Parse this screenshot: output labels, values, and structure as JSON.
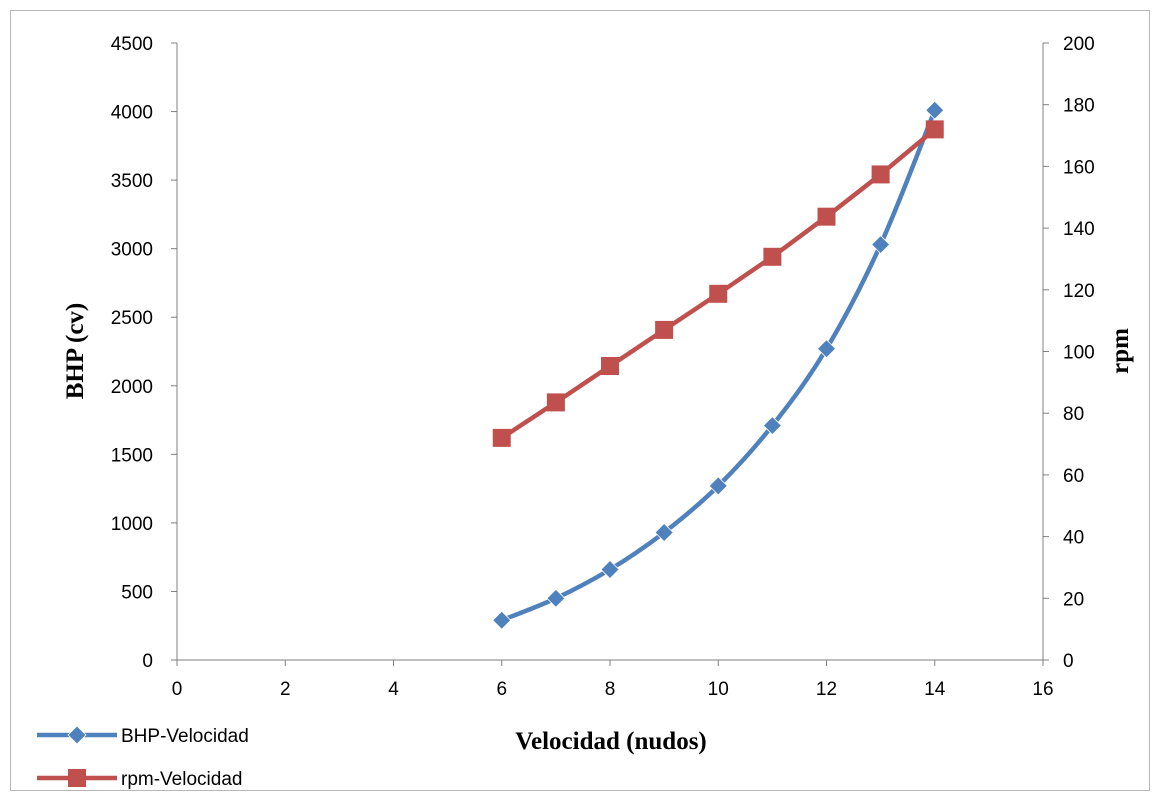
{
  "chart_data": {
    "type": "line",
    "title": "",
    "xlabel": "Velocidad (nudos)",
    "ylabel": "BHP (cv)",
    "y2label": "rpm",
    "xlim": [
      0,
      16
    ],
    "ylim": [
      0,
      4500
    ],
    "y2lim": [
      0,
      200
    ],
    "xticks": [
      "0",
      "2",
      "4",
      "6",
      "8",
      "10",
      "12",
      "14",
      "16"
    ],
    "yticks": [
      "0",
      "500",
      "1000",
      "1500",
      "2000",
      "2500",
      "3000",
      "3500",
      "4000",
      "4500"
    ],
    "y2ticks": [
      "0",
      "20",
      "40",
      "60",
      "80",
      "100",
      "120",
      "140",
      "160",
      "180",
      "200"
    ],
    "grid": false,
    "legend_position": "bottom-left",
    "series": [
      {
        "name": "BHP-Velocidad",
        "axis": "left",
        "marker": "diamond",
        "smooth": true,
        "color": "#4f81bd",
        "x": [
          6,
          7,
          8,
          9,
          10,
          11,
          12,
          13,
          14
        ],
        "y": [
          290,
          450,
          660,
          930,
          1270,
          1710,
          2270,
          3030,
          4010
        ]
      },
      {
        "name": "rpm-Velocidad",
        "axis": "right",
        "marker": "square",
        "smooth": false,
        "color": "#c0504d",
        "x": [
          6,
          7,
          8,
          9,
          10,
          11,
          12,
          13,
          14
        ],
        "y": [
          72,
          83.5,
          95.3,
          107,
          118.7,
          130.7,
          143.7,
          157.4,
          172
        ]
      }
    ]
  }
}
